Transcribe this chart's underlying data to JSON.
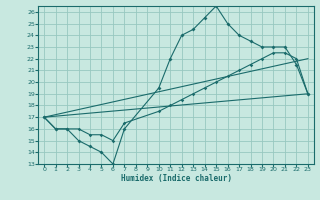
{
  "xlabel": "Humidex (Indice chaleur)",
  "xlim": [
    -0.5,
    23.5
  ],
  "ylim": [
    13,
    26.5
  ],
  "xticks": [
    0,
    1,
    2,
    3,
    4,
    5,
    6,
    7,
    8,
    9,
    10,
    11,
    12,
    13,
    14,
    15,
    16,
    17,
    18,
    19,
    20,
    21,
    22,
    23
  ],
  "yticks": [
    13,
    14,
    15,
    16,
    17,
    18,
    19,
    20,
    21,
    22,
    23,
    24,
    25,
    26
  ],
  "bg_color": "#c8e8e0",
  "grid_color": "#98c8c0",
  "line_color": "#1a6b6b",
  "line1_x": [
    0,
    1,
    2,
    3,
    4,
    5,
    6,
    7,
    10,
    11,
    12,
    13,
    14,
    15,
    16,
    17,
    18,
    19,
    20,
    21,
    22,
    23
  ],
  "line1_y": [
    17,
    16,
    16,
    15,
    14.5,
    14,
    13,
    16,
    19.5,
    22,
    24,
    24.5,
    25.5,
    26.5,
    25,
    24,
    23.5,
    23,
    23,
    23,
    21.5,
    19
  ],
  "line2_x": [
    0,
    1,
    2,
    3,
    4,
    5,
    6,
    7,
    10,
    11,
    12,
    13,
    14,
    15,
    16,
    17,
    18,
    19,
    20,
    21,
    22,
    23
  ],
  "line2_y": [
    17,
    16,
    16,
    16,
    15.5,
    15.5,
    15,
    16.5,
    17.5,
    18,
    18.5,
    19,
    19.5,
    20,
    20.5,
    21,
    21.5,
    22,
    22.5,
    22.5,
    22,
    19
  ],
  "line3_x": [
    0,
    23
  ],
  "line3_y": [
    17,
    19
  ],
  "line4_x": [
    0,
    23
  ],
  "line4_y": [
    17,
    22
  ]
}
